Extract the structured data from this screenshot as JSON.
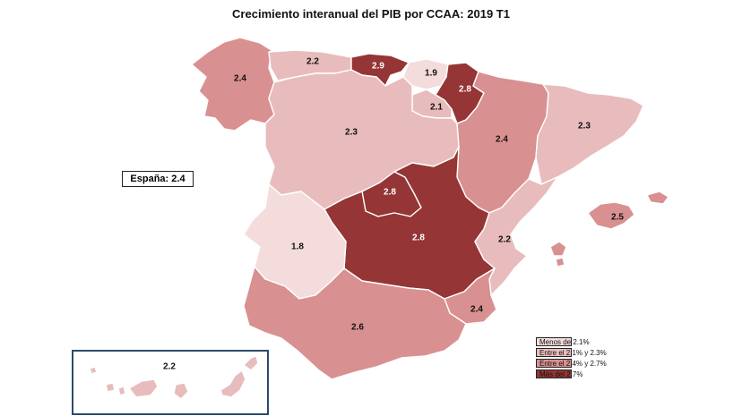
{
  "title": "Crecimiento interanual del PIB por CCAA: 2019 T1",
  "national": "España: 2.4",
  "colors": {
    "menos_2_1": "#f4dcdc",
    "entre_2_1_2_3": "#e8bcbc",
    "entre_2_4_2_7": "#d99090",
    "mas_2_7": "#953535",
    "label_dark": "#111111",
    "label_light": "#ffffff",
    "region_border": "#ffffff",
    "inset_border": "#2e4a6b"
  },
  "regions": [
    {
      "name": "Galicia",
      "value": "2.4",
      "class": "entre_2_4_2_7"
    },
    {
      "name": "Asturias",
      "value": "2.2",
      "class": "entre_2_1_2_3"
    },
    {
      "name": "Cantabria",
      "value": "2.9",
      "class": "mas_2_7"
    },
    {
      "name": "País Vasco",
      "value": "1.9",
      "class": "menos_2_1"
    },
    {
      "name": "Navarra",
      "value": "2.8",
      "class": "mas_2_7"
    },
    {
      "name": "La Rioja",
      "value": "2.1",
      "class": "entre_2_1_2_3"
    },
    {
      "name": "Aragón",
      "value": "2.4",
      "class": "entre_2_4_2_7"
    },
    {
      "name": "Cataluña",
      "value": "2.3",
      "class": "entre_2_1_2_3"
    },
    {
      "name": "Castilla y León",
      "value": "2.3",
      "class": "entre_2_1_2_3"
    },
    {
      "name": "Madrid",
      "value": "2.8",
      "class": "mas_2_7"
    },
    {
      "name": "Castilla-La Mancha",
      "value": "2.8",
      "class": "mas_2_7"
    },
    {
      "name": "Extremadura",
      "value": "1.8",
      "class": "menos_2_1"
    },
    {
      "name": "Comunitat Valenciana",
      "value": "2.2",
      "class": "entre_2_1_2_3"
    },
    {
      "name": "Illes Balears",
      "value": "2.5",
      "class": "entre_2_4_2_7"
    },
    {
      "name": "Región de Murcia",
      "value": "2.4",
      "class": "entre_2_4_2_7"
    },
    {
      "name": "Andalucía",
      "value": "2.6",
      "class": "entre_2_4_2_7"
    },
    {
      "name": "Canarias",
      "value": "2.2",
      "class": "entre_2_1_2_3"
    }
  ],
  "legend": [
    {
      "label": "Menos de 2.1%",
      "class": "menos_2_1"
    },
    {
      "label": "Entre el 2.1% y 2.3%",
      "class": "entre_2_1_2_3"
    },
    {
      "label": "Entre el 2.4% y 2.7%",
      "class": "entre_2_4_2_7"
    },
    {
      "label": "Más del 2.7%",
      "class": "mas_2_7"
    }
  ]
}
